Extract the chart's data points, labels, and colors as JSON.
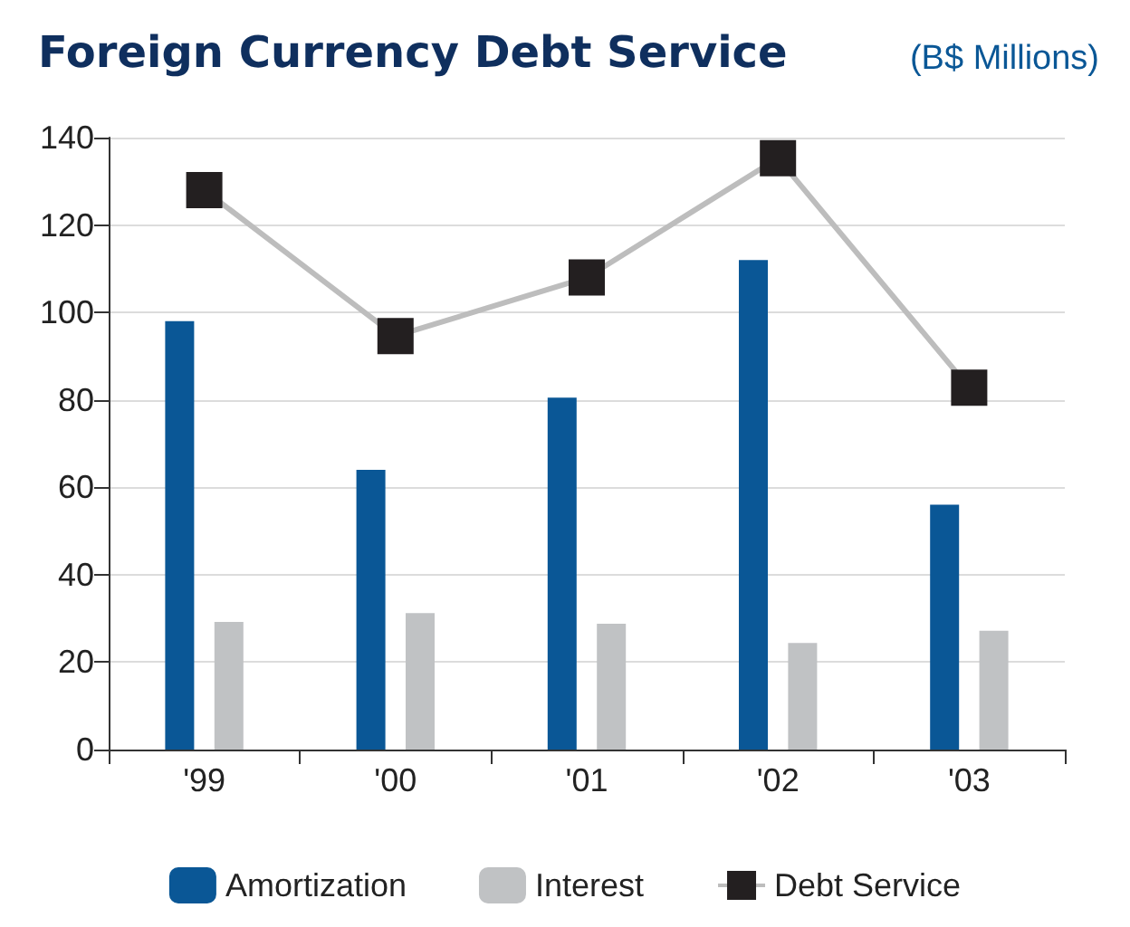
{
  "chart_data": {
    "type": "bar",
    "title": "Foreign Currency Debt Service",
    "subtitle": "(B$ Millions)",
    "categories": [
      "'99",
      "'00",
      "'01",
      "'02",
      "'03"
    ],
    "series": [
      {
        "name": "Amortization",
        "color": "#0a5796",
        "values": [
          98,
          64,
          80.5,
          112,
          56
        ]
      },
      {
        "name": "Interest",
        "color": "#c0c2c4",
        "values": [
          29.2,
          31.2,
          28.8,
          24.4,
          27.2
        ]
      },
      {
        "name": "Debt Service",
        "type": "line",
        "color": "#231f20",
        "values": [
          128,
          94.6,
          108,
          135.3,
          82.8
        ]
      }
    ],
    "ylim": [
      0,
      140
    ],
    "yticks": [
      0,
      20,
      40,
      60,
      80,
      100,
      120,
      140
    ],
    "grid": "y",
    "legend": "bottom",
    "marker": "square",
    "line_style": "solid"
  }
}
